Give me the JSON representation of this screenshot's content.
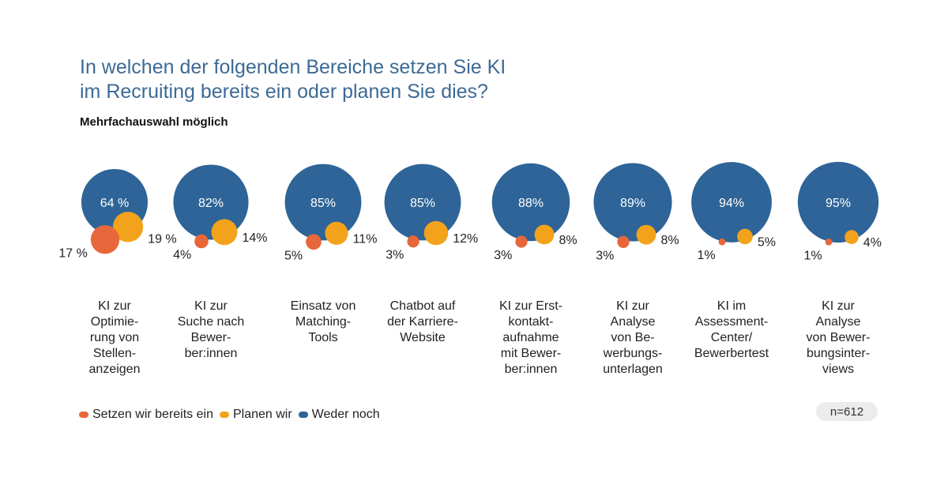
{
  "title_lines": [
    "In welchen der folgenden Bereiche setzen Sie KI",
    "im Recruiting bereits ein oder planen Sie dies?"
  ],
  "subtitle": "Mehrfachauswahl möglich",
  "legend": [
    {
      "label": "Setzen wir bereits ein",
      "color": "#e8673a"
    },
    {
      "label": "Planen wir",
      "color": "#f2a31b"
    },
    {
      "label": "Weder noch",
      "color": "#2e6497"
    }
  ],
  "sample_size": "n=612",
  "chart_data": {
    "type": "bubble",
    "series": [
      {
        "name": "Setzen wir bereits ein",
        "color": "#e8673a"
      },
      {
        "name": "Planen wir",
        "color": "#f2a31b"
      },
      {
        "name": "Weder noch",
        "color": "#2e6497"
      }
    ],
    "categories": [
      {
        "label_lines": [
          "KI zur",
          "Optimie-",
          "rung von",
          "Stellen-",
          "anzeigen"
        ],
        "bereits": 17,
        "planen": 19,
        "weder": 64,
        "bereits_label": "17 %",
        "planen_label": "19 %",
        "weder_label": "64 %"
      },
      {
        "label_lines": [
          "KI zur",
          "Suche nach",
          "Bewer-",
          "ber:innen"
        ],
        "bereits": 4,
        "planen": 14,
        "weder": 82,
        "bereits_label": "4%",
        "planen_label": "14%",
        "weder_label": "82%"
      },
      {
        "label_lines": [
          "Einsatz von",
          "Matching-",
          "Tools"
        ],
        "bereits": 5,
        "planen": 11,
        "weder": 85,
        "bereits_label": "5%",
        "planen_label": "11%",
        "weder_label": "85%"
      },
      {
        "label_lines": [
          "Chatbot auf",
          "der Karriere-",
          "Website"
        ],
        "bereits": 3,
        "planen": 12,
        "weder": 85,
        "bereits_label": "3%",
        "planen_label": "12%",
        "weder_label": "85%"
      },
      {
        "label_lines": [
          "KI zur Erst-",
          "kontakt-",
          "aufnahme",
          "mit Bewer-",
          "ber:innen"
        ],
        "bereits": 3,
        "planen": 8,
        "weder": 88,
        "bereits_label": "3%",
        "planen_label": "8%",
        "weder_label": "88%"
      },
      {
        "label_lines": [
          "KI zur",
          "Analyse",
          "von Be-",
          "werbungs-",
          "unterlagen"
        ],
        "bereits": 3,
        "planen": 8,
        "weder": 89,
        "bereits_label": "3%",
        "planen_label": "8%",
        "weder_label": "89%"
      },
      {
        "label_lines": [
          "KI im",
          "Assessment-",
          "Center/",
          "Bewerbertest"
        ],
        "bereits": 1,
        "planen": 5,
        "weder": 94,
        "bereits_label": "1%",
        "planen_label": "5%",
        "weder_label": "94%"
      },
      {
        "label_lines": [
          "KI zur",
          "Analyse",
          "von Bewer-",
          "bungsinter-",
          "views"
        ],
        "bereits": 1,
        "planen": 4,
        "weder": 95,
        "bereits_label": "1%",
        "planen_label": "4%",
        "weder_label": "95%"
      }
    ]
  }
}
